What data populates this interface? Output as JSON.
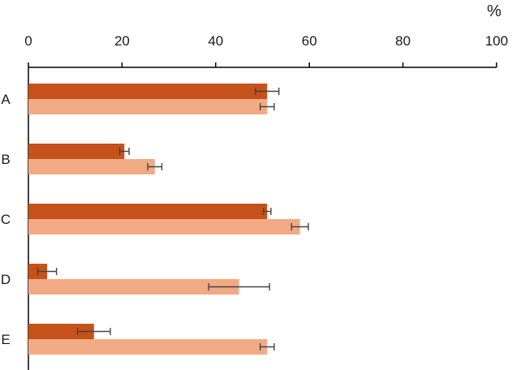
{
  "chart_data": {
    "type": "bar",
    "orientation": "horizontal",
    "x_axis_position": "top",
    "unit_label": "%",
    "title": "",
    "xlabel": "",
    "ylabel": "",
    "xlim": [
      0,
      100
    ],
    "x_ticks": [
      0,
      20,
      40,
      60,
      80,
      100
    ],
    "categories": [
      "A",
      "B",
      "C",
      "D",
      "E"
    ],
    "grid": false,
    "legend": "none",
    "series": [
      {
        "color": "#c4521a",
        "values": [
          51,
          20.5,
          51,
          4,
          14
        ],
        "errors": [
          2.5,
          1.0,
          0.8,
          2.0,
          3.5
        ]
      },
      {
        "color": "#f2aa84",
        "values": [
          51,
          27,
          58,
          45,
          51
        ],
        "errors": [
          1.5,
          1.5,
          1.8,
          6.5,
          1.5
        ]
      }
    ]
  }
}
